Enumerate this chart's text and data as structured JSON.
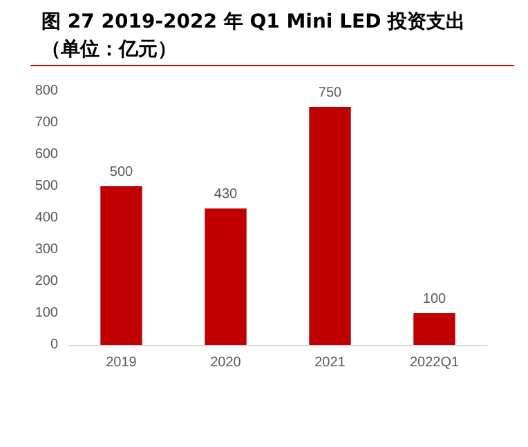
{
  "chart_data": {
    "type": "bar",
    "title": "图 27 2019-2022 年 Q1 Mini LED 投资支出（单位：亿元）",
    "categories": [
      "2019",
      "2020",
      "2021",
      "2022Q1"
    ],
    "values": [
      500,
      430,
      750,
      100
    ],
    "color": "#c00000",
    "ylim": [
      0,
      800
    ],
    "yticks": [
      0,
      100,
      200,
      300,
      400,
      500,
      600,
      700,
      800
    ],
    "grid": false,
    "data_labels": true
  }
}
